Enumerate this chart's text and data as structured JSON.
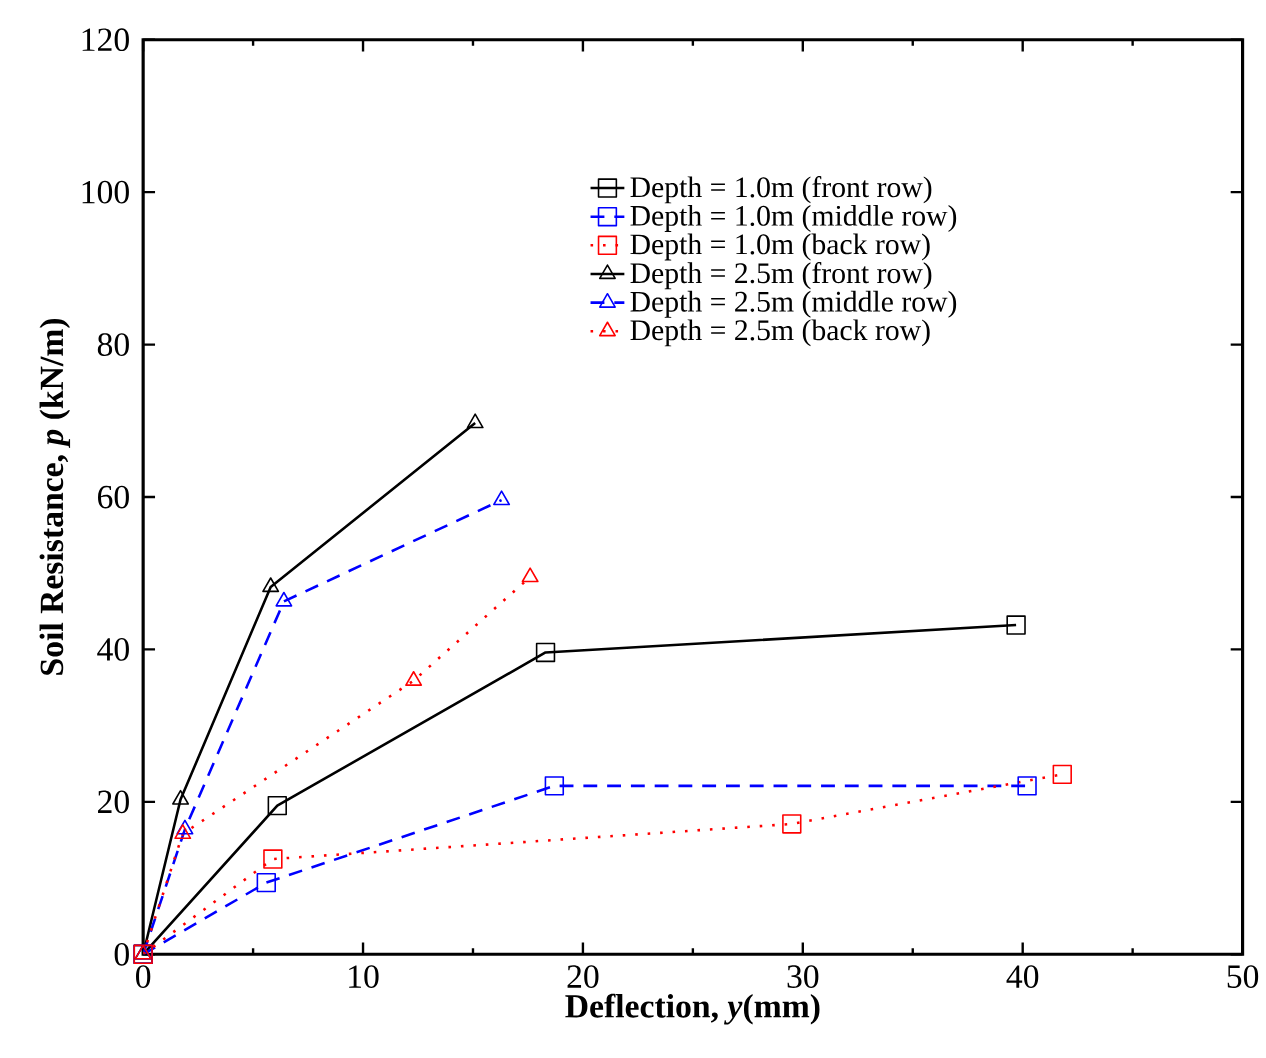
{
  "chart_data": {
    "type": "line",
    "xlabel": "Deflection, *y*(mm)",
    "ylabel": "Soil Resistance, *p* (kN/m)",
    "xlim": [
      0,
      50
    ],
    "ylim": [
      0,
      120
    ],
    "xticks": [
      0,
      10,
      20,
      30,
      40,
      50
    ],
    "yticks": [
      0,
      20,
      40,
      60,
      80,
      100,
      120
    ],
    "legend": "top right",
    "grid": false,
    "series": [
      {
        "name": "Depth = 1.0m (front row)",
        "color": "#000000",
        "marker": "square",
        "line_style": "solid",
        "x": [
          0,
          6.1,
          18.3,
          39.7
        ],
        "values": [
          0,
          19.5,
          39.6,
          43.2
        ]
      },
      {
        "name": "Depth = 1.0m (middle row)",
        "color": "#0000ff",
        "marker": "square",
        "line_style": "dashed",
        "x": [
          0,
          5.6,
          18.7,
          40.2
        ],
        "values": [
          0,
          9.4,
          22.1,
          22.1
        ]
      },
      {
        "name": "Depth = 1.0m (back row)",
        "color": "#ff0000",
        "marker": "square",
        "line_style": "dotted",
        "x": [
          0,
          5.9,
          29.5,
          41.8
        ],
        "values": [
          0,
          12.5,
          17.1,
          23.6
        ]
      },
      {
        "name": "Depth = 2.5m (front row)",
        "color": "#000000",
        "marker": "triangle",
        "line_style": "solid",
        "x": [
          0,
          1.7,
          5.8,
          15.1
        ],
        "values": [
          0,
          20.3,
          48.2,
          69.7
        ]
      },
      {
        "name": "Depth = 2.5m (middle row)",
        "color": "#0000ff",
        "marker": "triangle",
        "line_style": "dashed",
        "x": [
          0,
          1.9,
          6.4,
          16.3
        ],
        "values": [
          0,
          16.4,
          46.3,
          59.6
        ]
      },
      {
        "name": "Depth = 2.5m (back row)",
        "color": "#ff0000",
        "marker": "triangle",
        "line_style": "dotted",
        "x": [
          0,
          1.8,
          12.3,
          17.6
        ],
        "values": [
          0,
          15.8,
          35.9,
          49.5
        ]
      }
    ]
  }
}
